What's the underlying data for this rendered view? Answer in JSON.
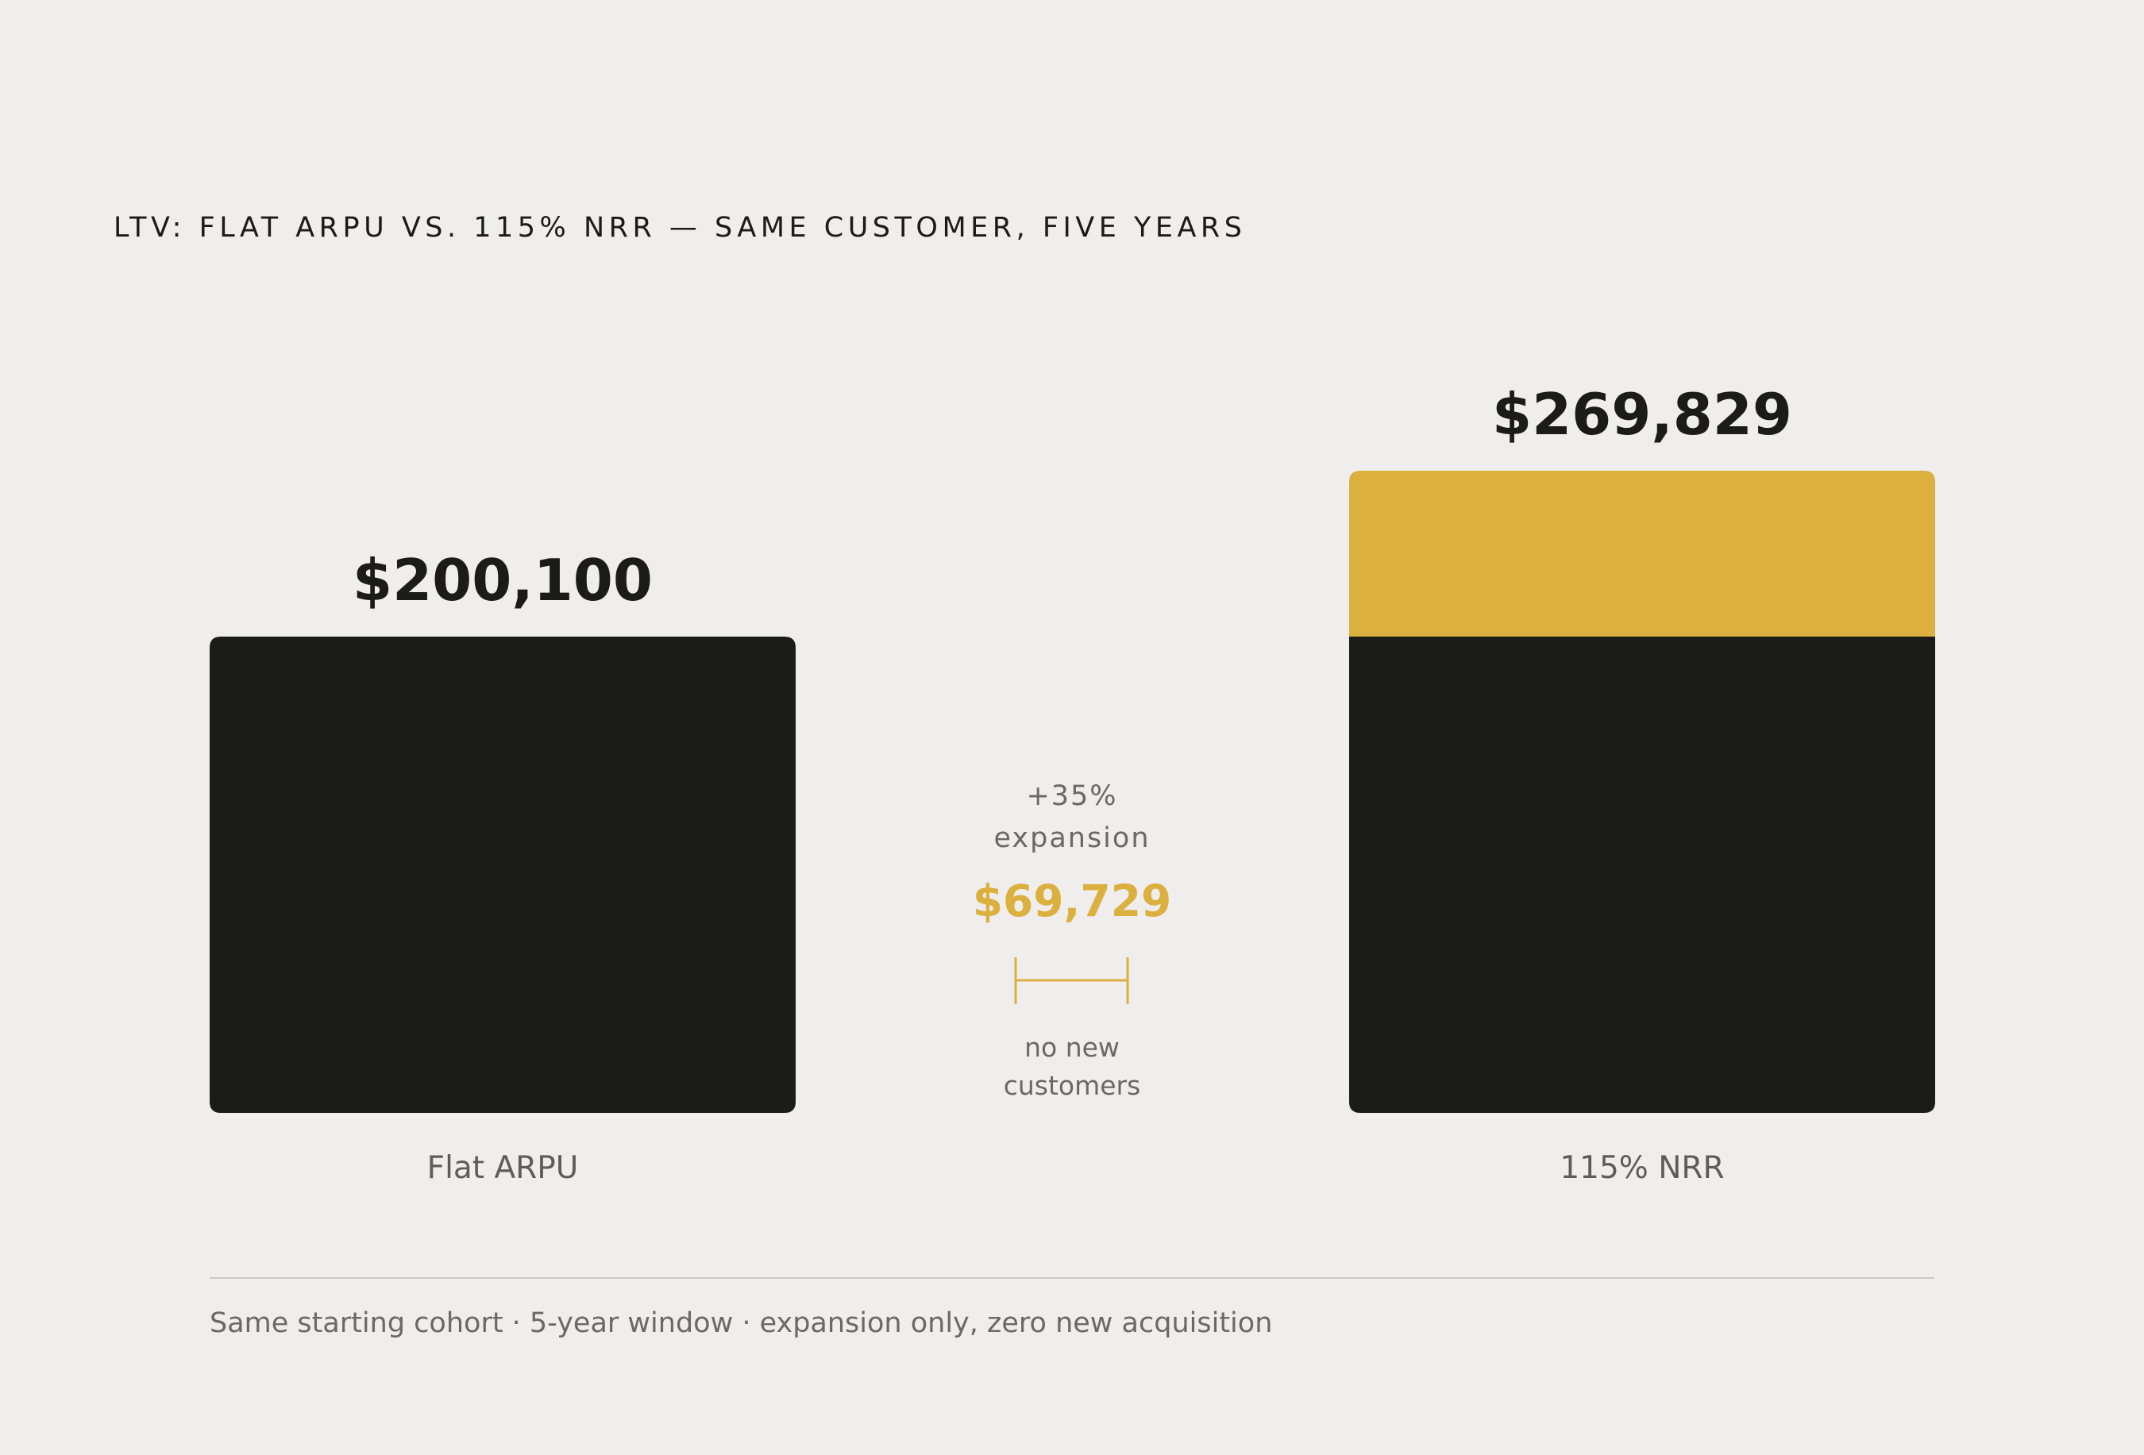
{
  "chart_data": {
    "type": "bar",
    "title": "LTV: FLAT ARPU VS. 115% NRR — SAME CUSTOMER, FIVE YEARS",
    "categories": [
      "Flat ARPU",
      "115% NRR"
    ],
    "series": [
      {
        "name": "",
        "values": [
          200100,
          200100
        ]
      },
      {
        "name": "",
        "values": [
          0,
          69729
        ]
      }
    ],
    "totals": [
      200100,
      269829
    ],
    "value_labels": [
      "$200,100",
      "$269,829"
    ],
    "ylim": [
      0,
      269829
    ],
    "stacked": true,
    "grid": false,
    "annotation": {
      "line1": "+35%",
      "line2": "expansion",
      "value": "$69,729",
      "note_line1": "no new",
      "note_line2": "customers"
    },
    "footnote": "Same starting cohort · 5-year window · expansion only, zero new acquisition"
  },
  "colors": {
    "background": "#efeeec",
    "base": "#1b1b1a",
    "expansion": "#dcb03f",
    "text_muted": "#6a6966",
    "rule": "#c9c8c5"
  }
}
